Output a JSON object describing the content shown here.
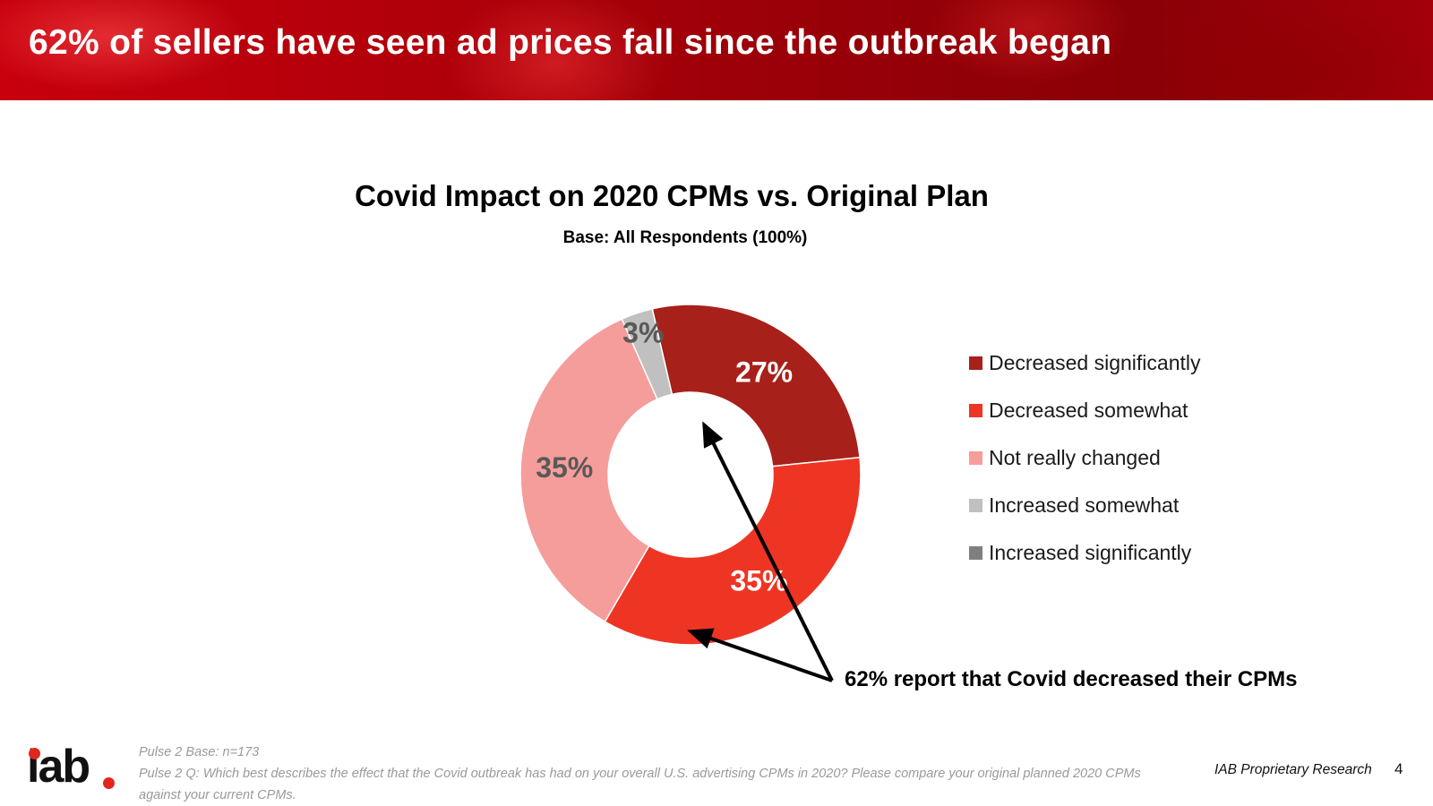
{
  "header": {
    "title": "62% of sellers have seen ad prices fall since the outbreak began"
  },
  "chart_data": {
    "type": "pie",
    "title": "Covid Impact on 2020 CPMs vs. Original Plan",
    "subtitle": "Base:  All Respondents (100%)",
    "legend_position": "right",
    "series": [
      {
        "name": "Decreased significantly",
        "value": 27,
        "label": "27%",
        "color": "#a8201a",
        "label_color": "#ffffff"
      },
      {
        "name": "Decreased somewhat",
        "value": 35,
        "label": "35%",
        "color": "#ee3524",
        "label_color": "#ffffff"
      },
      {
        "name": "Not really changed",
        "value": 35,
        "label": "35%",
        "color": "#f59d9b",
        "label_color": "#595959"
      },
      {
        "name": "Increased somewhat",
        "value": 3,
        "label": "3%",
        "color": "#c0c0c0",
        "label_color": "#595959"
      },
      {
        "name": "Increased significantly",
        "value": 0,
        "label": "",
        "color": "#7f7f7f",
        "label_color": "#595959"
      }
    ],
    "annotation": "62% report that Covid decreased their CPMs"
  },
  "footer": {
    "logo_text": "iab",
    "note_base": "Pulse 2 Base: n=173",
    "note_question": "Pulse 2 Q: Which best describes the effect that the Covid outbreak has had on your overall U.S. advertising CPMs in 2020? Please compare your original planned 2020 CPMs against your current CPMs.",
    "source": "IAB Proprietary Research",
    "page_number": "4"
  }
}
